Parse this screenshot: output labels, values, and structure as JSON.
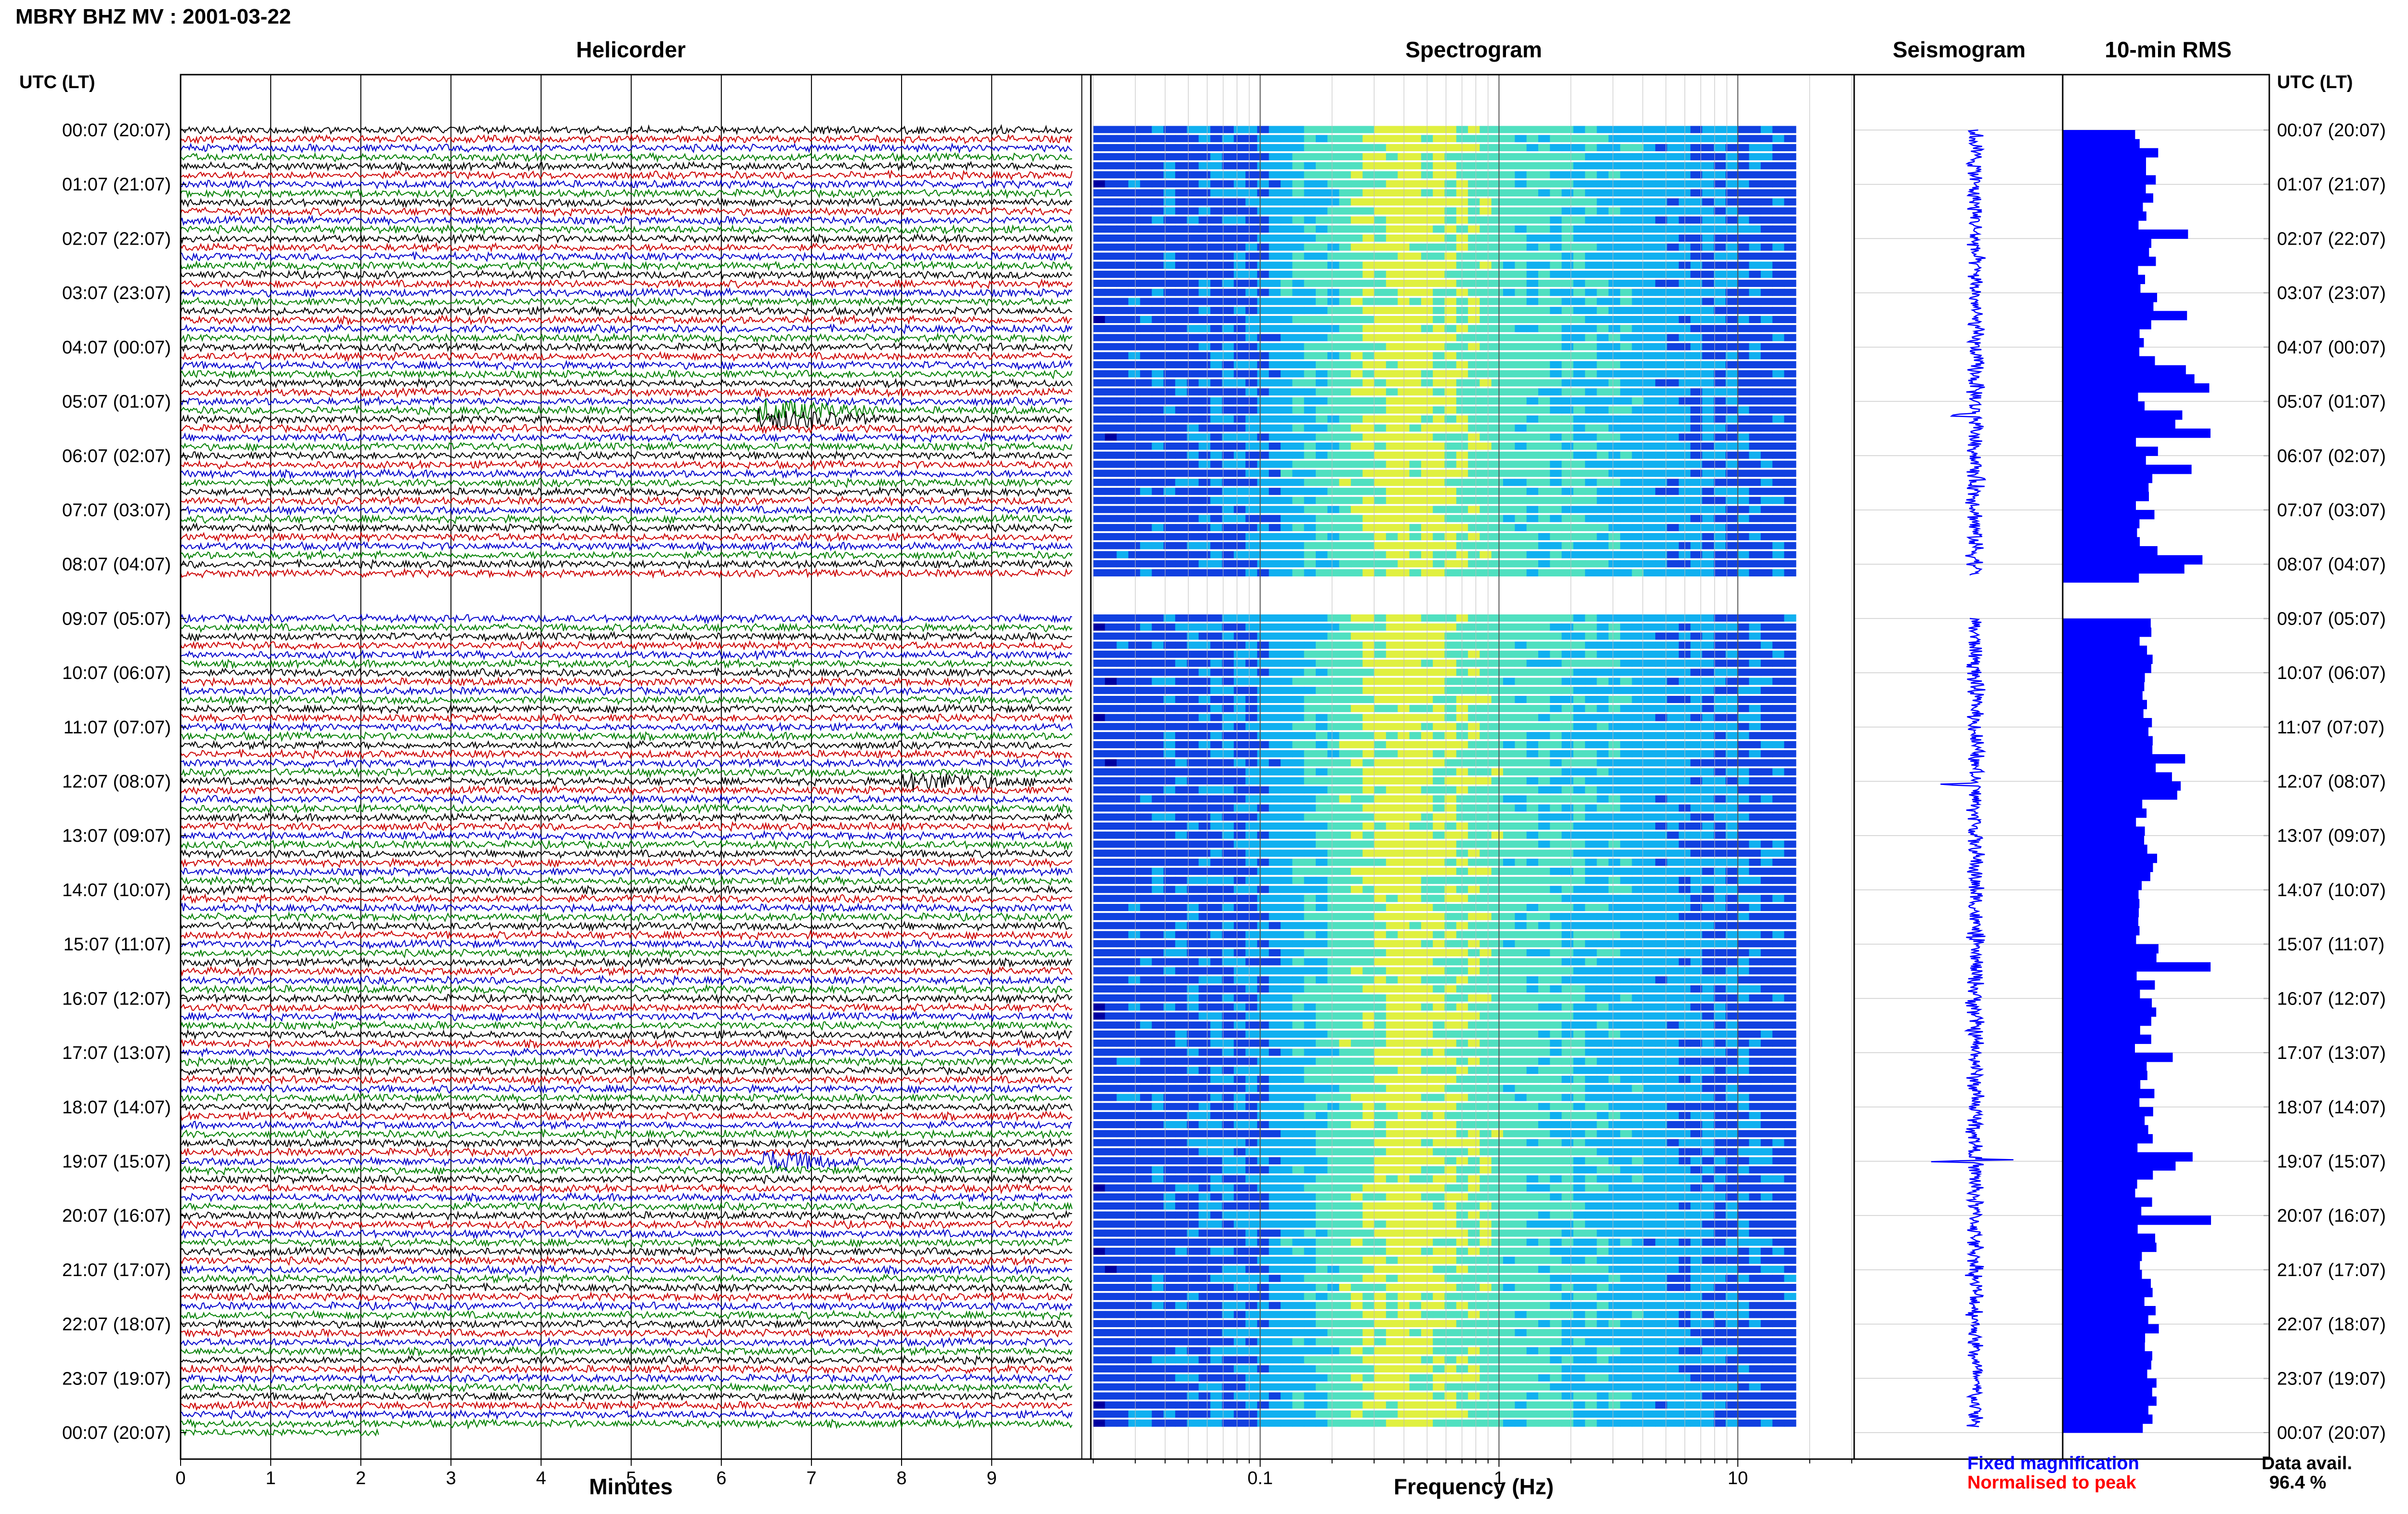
{
  "header": {
    "title": "MBRY BHZ MV : 2001-03-22"
  },
  "panels": {
    "helicorder": "Helicorder",
    "spectrogram": "Spectrogram",
    "seismogram": "Seismogram",
    "rms": "10-min RMS"
  },
  "utc_label_left": "UTC (LT)",
  "utc_label_right": "UTC (LT)",
  "legend": {
    "fixed": "Fixed magnification",
    "normalised": "Normalised to peak",
    "fixed_color": "#0000ff",
    "normalised_color": "#ff0000"
  },
  "data_avail": {
    "label": "Data avail.",
    "value": "96.4 %"
  },
  "chart_data": [
    {
      "type": "line",
      "panel": "Helicorder",
      "xlabel": "Minutes",
      "x_ticks": [
        "0",
        "1",
        "2",
        "3",
        "4",
        "5",
        "6",
        "7",
        "8",
        "9"
      ],
      "xlim": [
        0,
        10
      ],
      "time_labels": [
        "00:07 (20:07)",
        "01:07 (21:07)",
        "02:07 (22:07)",
        "03:07 (23:07)",
        "04:07 (00:07)",
        "05:07 (01:07)",
        "06:07 (02:07)",
        "07:07 (03:07)",
        "08:07 (04:07)",
        "09:07 (05:07)",
        "10:07 (06:07)",
        "11:07 (07:07)",
        "12:07 (08:07)",
        "13:07 (09:07)",
        "14:07 (10:07)",
        "15:07 (11:07)",
        "16:07 (12:07)",
        "17:07 (13:07)",
        "18:07 (14:07)",
        "19:07 (15:07)",
        "20:07 (16:07)",
        "21:07 (17:07)",
        "22:07 (18:07)",
        "23:07 (19:07)",
        "00:07 (20:07)"
      ],
      "trace_colors": [
        "#000000",
        "#cc0000",
        "#0000cc",
        "#008000"
      ],
      "gaps_hours": [
        [
          8.2,
          9.0
        ]
      ],
      "events": [
        {
          "hour": 5.25,
          "minute": 6.4,
          "duration_min": 1.5,
          "color": "#000000",
          "amplitude": 5
        },
        {
          "hour": 12.05,
          "minute": 8.0,
          "duration_min": 1.6,
          "color": "#cc0000",
          "amplitude": 4
        },
        {
          "hour": 19.0,
          "minute": 6.4,
          "duration_min": 1.2,
          "color": "#cc0000",
          "amplitude": 5
        }
      ]
    },
    {
      "type": "heatmap",
      "panel": "Spectrogram",
      "xlabel": "Frequency (Hz)",
      "x_scale": "log",
      "x_ticks": [
        "0.1",
        "1",
        "10"
      ],
      "xlim": [
        0.02,
        30
      ],
      "colormap": [
        "#0000a0",
        "#1040e0",
        "#10b0f0",
        "#50e0c0",
        "#e0f040"
      ]
    },
    {
      "type": "line",
      "panel": "Seismogram",
      "color": "#0000ff"
    },
    {
      "type": "bar",
      "panel": "10-min RMS",
      "orientation": "horizontal",
      "color": "#0000ff"
    }
  ]
}
